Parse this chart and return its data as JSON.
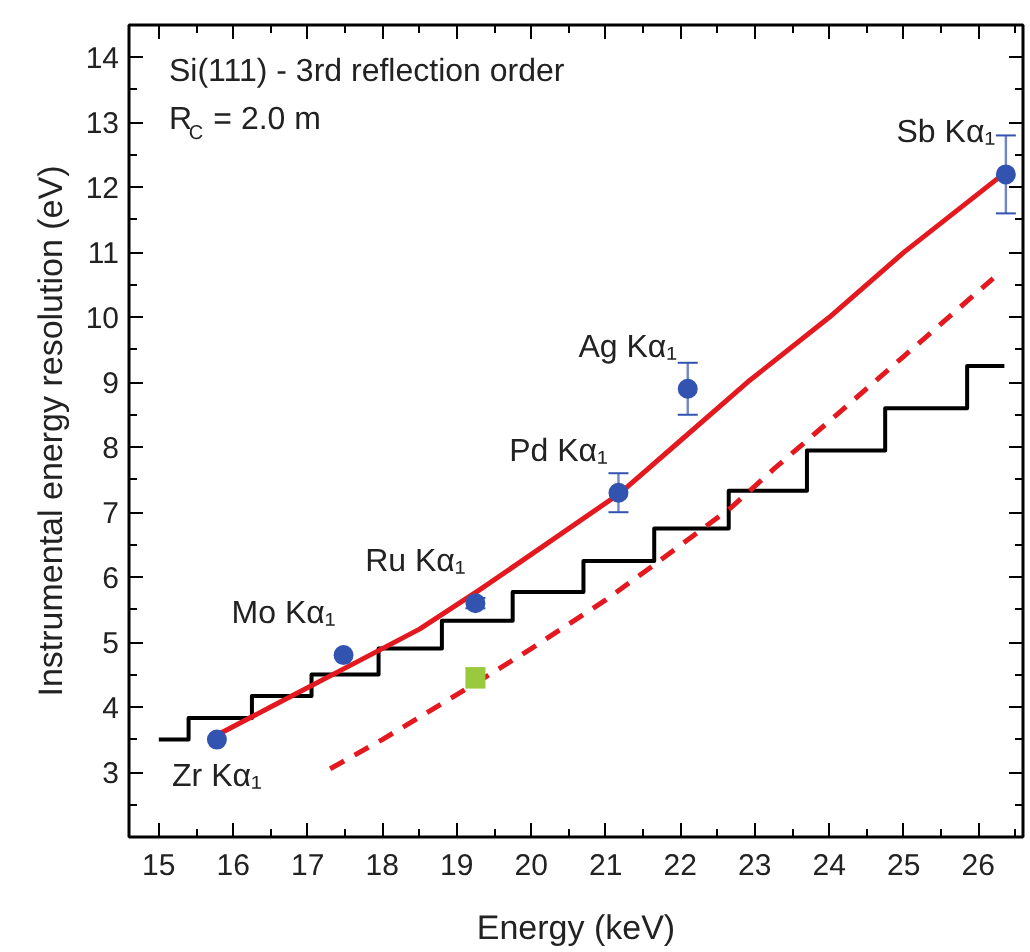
{
  "chart_data": {
    "type": "scatter",
    "xlabel": "Energy (keV)",
    "ylabel": "Instrumental energy resolution (eV)",
    "xlim": [
      14.6,
      26.6
    ],
    "ylim": [
      2.0,
      14.5
    ],
    "xticks": [
      15,
      16,
      17,
      18,
      19,
      20,
      21,
      22,
      23,
      24,
      25,
      26
    ],
    "yticks": [
      3,
      4,
      5,
      6,
      7,
      8,
      9,
      10,
      11,
      12,
      13,
      14
    ],
    "grid": false,
    "series": [
      {
        "type": "step",
        "color": "#000000",
        "line_style": "solid",
        "x": [
          15.0,
          15.4,
          16.25,
          17.05,
          17.95,
          18.8,
          19.75,
          20.7,
          21.65,
          22.65,
          23.7,
          24.75,
          25.85,
          26.35
        ],
        "values": [
          3.5,
          3.83,
          4.17,
          4.5,
          4.9,
          5.33,
          5.77,
          6.25,
          6.75,
          7.33,
          7.95,
          8.6,
          9.25,
          9.25
        ]
      },
      {
        "type": "line",
        "color": "#e3191f",
        "line_style": "solid",
        "x": [
          15.75,
          16.5,
          17.5,
          18.5,
          19.3,
          20.0,
          21.2,
          22.0,
          22.9,
          24.0,
          25.0,
          26.33
        ],
        "values": [
          3.55,
          4.0,
          4.6,
          5.2,
          5.8,
          6.35,
          7.3,
          8.1,
          9.0,
          10.0,
          11.0,
          12.2
        ]
      },
      {
        "type": "line",
        "color": "#e3191f",
        "line_style": "dashed",
        "x": [
          17.3,
          18.0,
          19.3,
          20.0,
          21.0,
          21.6,
          22.67,
          23.26,
          24.0,
          25.0,
          26.2
        ],
        "values": [
          3.05,
          3.5,
          4.4,
          4.9,
          5.65,
          6.15,
          7.06,
          7.67,
          8.4,
          9.4,
          10.6
        ]
      },
      {
        "color": "#3353b0",
        "marker": "circle",
        "x": [
          15.78,
          17.48,
          19.25,
          21.17,
          22.1,
          26.37
        ],
        "values": [
          3.5,
          4.8,
          5.6,
          7.3,
          8.9,
          12.2
        ],
        "errors": [
          null,
          null,
          0.08,
          0.3,
          0.4,
          0.6
        ]
      },
      {
        "color": "#99c93c",
        "marker": "square",
        "x": [
          19.25
        ],
        "values": [
          4.45
        ],
        "errors": [
          0.15
        ]
      }
    ],
    "annotations": [
      "Si(111) - 3rd reflection order",
      "R$_{C}$ = 2.0 m",
      {
        "text": "Zr Kα₁",
        "x": 15.78,
        "y": 3.5
      },
      {
        "text": "Mo Kα₁",
        "x": 17.48,
        "y": 4.8
      },
      {
        "text": "Ru Kα₁",
        "x": 19.25,
        "y": 5.6
      },
      {
        "text": "Pd Kα₁",
        "x": 21.17,
        "y": 7.3
      },
      {
        "text": "Ag Kα₁",
        "x": 22.1,
        "y": 8.9
      },
      {
        "text": "Sb Kα₁",
        "x": 26.37,
        "y": 12.2
      }
    ]
  }
}
